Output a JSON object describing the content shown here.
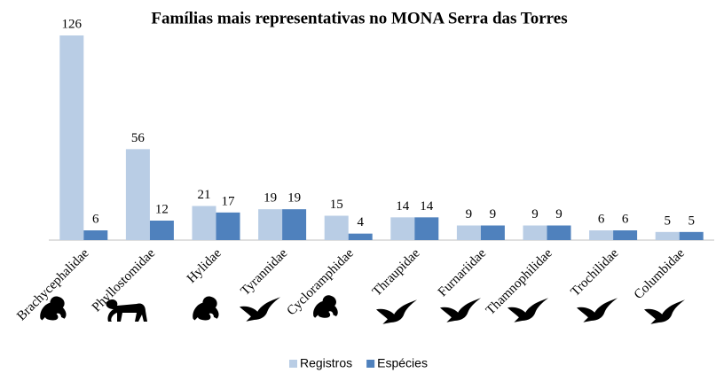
{
  "chart_data": {
    "type": "bar",
    "title": "Famílias mais representativas no MONA Serra das Torres",
    "categories": [
      "Brachycephalidae",
      "Phyllostomidae",
      "Hylidae",
      "Tyrannidae",
      "Cycloramphidae",
      "Thraupidae",
      "Furnariidae",
      "Thamnophilidae",
      "Trochilidae",
      "Columbidae"
    ],
    "series": [
      {
        "name": "Registros",
        "color": "#b9cde5",
        "values": [
          126,
          56,
          21,
          19,
          15,
          14,
          9,
          9,
          6,
          5
        ]
      },
      {
        "name": "Espécies",
        "color": "#4f81bd",
        "values": [
          6,
          12,
          17,
          19,
          4,
          14,
          9,
          9,
          6,
          5
        ]
      }
    ],
    "legend": "bottom"
  }
}
